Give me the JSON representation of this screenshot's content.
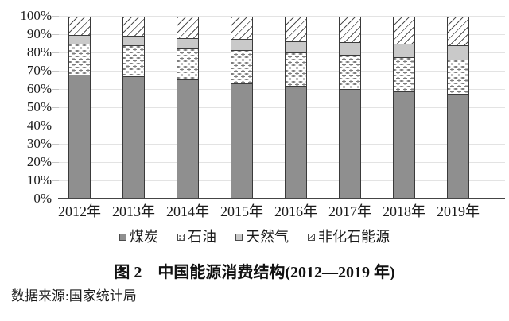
{
  "figure": {
    "caption": "图 2　中国能源消费结构(2012—2019 年)",
    "source": "数据来源:国家统计局"
  },
  "chart_data": {
    "type": "bar",
    "stacked": true,
    "unit": "percent",
    "title": "图 2　中国能源消费结构(2012—2019 年)",
    "categories": [
      "2012年",
      "2013年",
      "2014年",
      "2015年",
      "2016年",
      "2017年",
      "2018年",
      "2019年"
    ],
    "series": [
      {
        "key": "coal",
        "name": "煤炭",
        "style": "solid-dark-gray",
        "values": [
          68.5,
          67.4,
          65.8,
          63.8,
          62.2,
          60.6,
          59.0,
          57.7
        ]
      },
      {
        "key": "oil",
        "name": "石油",
        "style": "white-dotted",
        "values": [
          17.0,
          17.1,
          17.3,
          18.4,
          18.7,
          18.9,
          18.9,
          19.0
        ]
      },
      {
        "key": "gas",
        "name": "天然气",
        "style": "solid-light-gray",
        "values": [
          4.8,
          5.3,
          5.6,
          5.8,
          6.1,
          6.9,
          7.6,
          8.0
        ]
      },
      {
        "key": "nonfossil",
        "name": "非化石能源",
        "style": "diagonal-hatch",
        "values": [
          9.7,
          10.2,
          11.3,
          12.0,
          13.0,
          13.6,
          14.5,
          15.3
        ]
      }
    ],
    "ylim": [
      0,
      100
    ],
    "yticks": [
      "0%",
      "10%",
      "20%",
      "30%",
      "40%",
      "50%",
      "60%",
      "70%",
      "80%",
      "90%",
      "100%"
    ],
    "grid": true,
    "legend_position": "bottom"
  },
  "colors": {
    "coal_fill": "#8f8f8f",
    "gas_fill": "#c9c9c9",
    "hatch_line": "#4f4f4f",
    "dot_fill": "#7d7d7d",
    "gridline": "#e3e3e3",
    "axis_line": "#454545",
    "segment_border": "#3a3a3a",
    "text": "#1b1b1b"
  }
}
